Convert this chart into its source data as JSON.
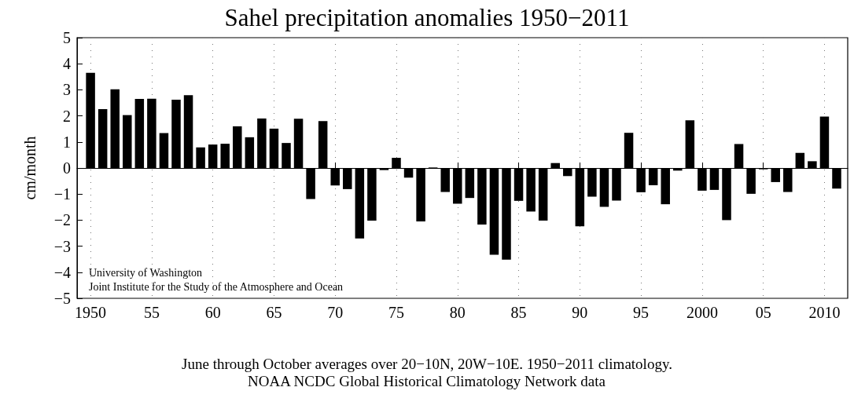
{
  "chart_data": {
    "type": "bar",
    "title": "Sahel precipitation anomalies 1950−2011",
    "ylabel": "cm/month",
    "x": [
      1950,
      1951,
      1952,
      1953,
      1954,
      1955,
      1956,
      1957,
      1958,
      1959,
      1960,
      1961,
      1962,
      1963,
      1964,
      1965,
      1966,
      1967,
      1968,
      1969,
      1970,
      1971,
      1972,
      1973,
      1974,
      1975,
      1976,
      1977,
      1978,
      1979,
      1980,
      1981,
      1982,
      1983,
      1984,
      1985,
      1986,
      1987,
      1988,
      1989,
      1990,
      1991,
      1992,
      1993,
      1994,
      1995,
      1996,
      1997,
      1998,
      1999,
      2000,
      2001,
      2002,
      2003,
      2004,
      2005,
      2006,
      2007,
      2008,
      2009,
      2010,
      2011
    ],
    "values": [
      3.65,
      2.26,
      3.02,
      2.03,
      2.65,
      2.66,
      1.34,
      2.62,
      2.79,
      0.79,
      0.9,
      0.93,
      1.6,
      1.18,
      1.9,
      1.51,
      0.96,
      1.89,
      -1.19,
      1.8,
      -0.67,
      -0.81,
      -2.7,
      -2.02,
      -0.08,
      0.39,
      -0.37,
      -2.05,
      0.02,
      -0.92,
      -1.37,
      -1.15,
      -2.17,
      -3.33,
      -3.52,
      -1.26,
      -1.67,
      -2.02,
      0.19,
      -0.31,
      -2.24,
      -1.1,
      -1.49,
      -1.25,
      1.35,
      -0.93,
      -0.66,
      -1.39,
      -0.1,
      1.83,
      -0.87,
      -0.84,
      -2.0,
      0.92,
      -0.99,
      -0.05,
      -0.54,
      -0.92,
      0.58,
      0.26,
      1.97,
      -0.79
    ],
    "color": "#000000",
    "xlim": [
      1948.9,
      2011.9
    ],
    "xticks": [
      1950,
      {
        "value": 1955,
        "label": "55"
      },
      {
        "value": 1960,
        "label": "60"
      },
      {
        "value": 1965,
        "label": "65"
      },
      {
        "value": 1970,
        "label": "70"
      },
      {
        "value": 1975,
        "label": "75"
      },
      {
        "value": 1980,
        "label": "80"
      },
      {
        "value": 1985,
        "label": "85"
      },
      {
        "value": 1990,
        "label": "90"
      },
      {
        "value": 1995,
        "label": "95"
      },
      2000,
      {
        "value": 2005,
        "label": "05"
      },
      2010
    ],
    "ylim": [
      -5,
      5
    ],
    "yticks": [
      {
        "value": -5,
        "label": "−5"
      },
      {
        "value": -4,
        "label": "−4"
      },
      {
        "value": -3,
        "label": "−3"
      },
      {
        "value": -2,
        "label": "−2"
      },
      {
        "value": -1,
        "label": "−1"
      },
      0,
      1,
      2,
      3,
      4,
      5
    ],
    "grid": "x",
    "annotations": [
      "University of Washington",
      "Joint Institute for the Study of the Atmosphere and Ocean",
      "June through October averages over 20−10N, 20W−10E. 1950−2011 climatology.",
      "NOAA NCDC Global Historical Climatology Network data"
    ]
  }
}
